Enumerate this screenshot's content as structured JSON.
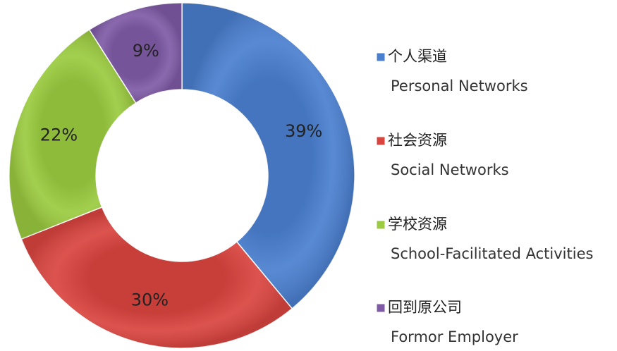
{
  "chart_data": {
    "type": "donut",
    "categories": [
      "个人渠道",
      "社会资源",
      "学校资源",
      "回到原公司"
    ],
    "category_subtitles": [
      "Personal Networks",
      "Social Networks",
      "School-Facilitated Activities",
      "Formor Employer"
    ],
    "values": [
      39,
      30,
      22,
      9
    ],
    "value_labels": [
      "39%",
      "30%",
      "22%",
      "9%"
    ],
    "colors": [
      "#4a7fcf",
      "#d9443f",
      "#9bcb40",
      "#7f5ba6"
    ],
    "legend": "right"
  }
}
